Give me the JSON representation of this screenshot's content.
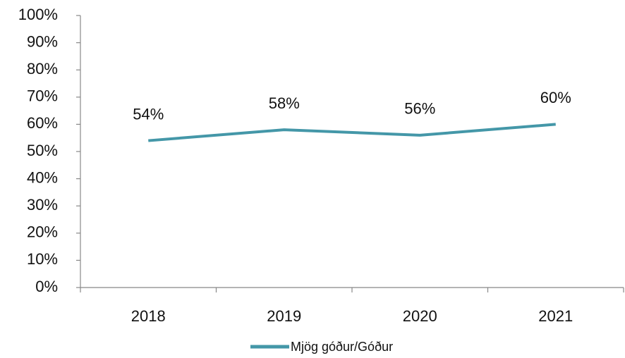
{
  "chart_data": {
    "type": "line",
    "categories": [
      "2018",
      "2019",
      "2020",
      "2021"
    ],
    "series": [
      {
        "name": "Mjög góður/Góður",
        "color": "#4497a8",
        "values": [
          54,
          58,
          56,
          60
        ],
        "value_labels": [
          "54%",
          "58%",
          "56%",
          "60%"
        ]
      }
    ],
    "ylim": [
      0,
      100
    ],
    "yticks": [
      {
        "value": 0,
        "label": "0%"
      },
      {
        "value": 10,
        "label": "10%"
      },
      {
        "value": 20,
        "label": "20%"
      },
      {
        "value": 30,
        "label": "30%"
      },
      {
        "value": 40,
        "label": "40%"
      },
      {
        "value": 50,
        "label": "50%"
      },
      {
        "value": 60,
        "label": "60%"
      },
      {
        "value": 70,
        "label": "70%"
      },
      {
        "value": 80,
        "label": "80%"
      },
      {
        "value": 90,
        "label": "90%"
      },
      {
        "value": 100,
        "label": "100%"
      }
    ],
    "grid": false,
    "legend": "bottom"
  }
}
